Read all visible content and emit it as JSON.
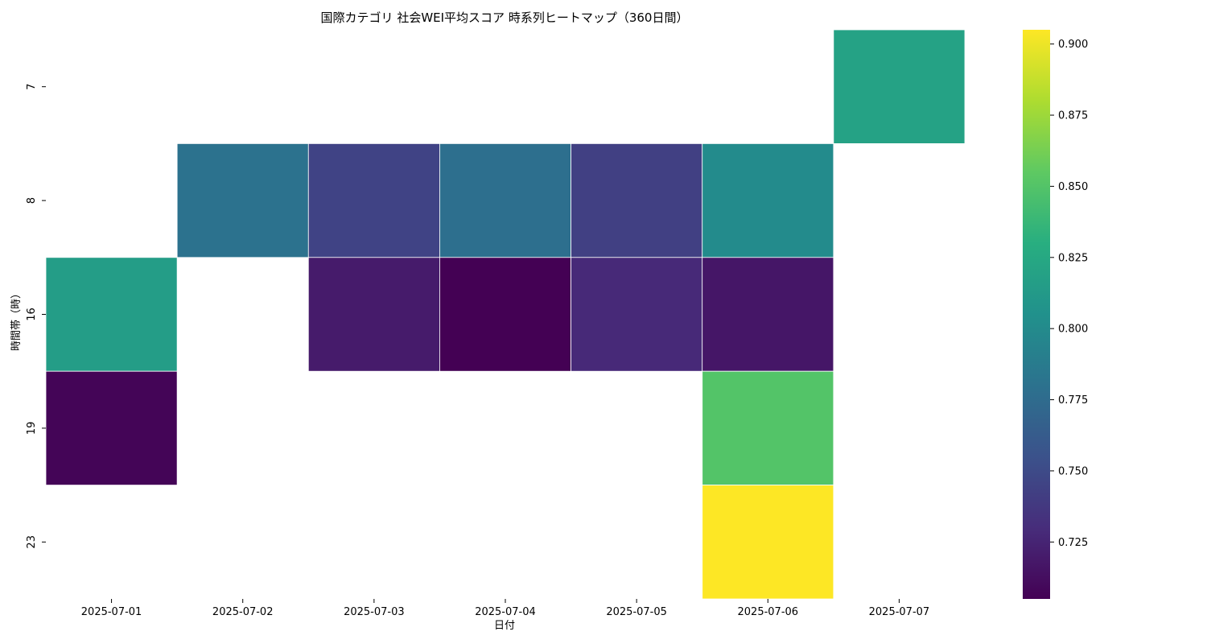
{
  "chart_data": {
    "type": "heatmap",
    "title": "国際カテゴリ 社会WEI平均スコア 時系列ヒートマップ（360日間）",
    "xlabel": "日付",
    "ylabel": "時間帯（時）",
    "x": [
      "2025-07-01",
      "2025-07-02",
      "2025-07-03",
      "2025-07-04",
      "2025-07-05",
      "2025-07-06",
      "2025-07-07"
    ],
    "y": [
      "7",
      "8",
      "16",
      "19",
      "23"
    ],
    "values": [
      [
        null,
        null,
        null,
        null,
        null,
        null,
        0.82
      ],
      [
        null,
        0.78,
        0.745,
        0.778,
        0.743,
        0.8,
        null
      ],
      [
        0.815,
        null,
        0.72,
        0.705,
        0.728,
        0.717,
        null
      ],
      [
        0.707,
        null,
        null,
        null,
        null,
        0.85,
        null
      ],
      [
        null,
        null,
        null,
        null,
        null,
        0.905,
        null
      ]
    ],
    "note_values_layout": "rows follow y order; columns follow x order",
    "colormap": "viridis",
    "colorbar": {
      "min": 0.705,
      "max": 0.905,
      "ticks": [
        "0.725",
        "0.750",
        "0.775",
        "0.800",
        "0.825",
        "0.850",
        "0.875",
        "0.900"
      ]
    },
    "grid": false,
    "legend": "colorbar-right"
  }
}
